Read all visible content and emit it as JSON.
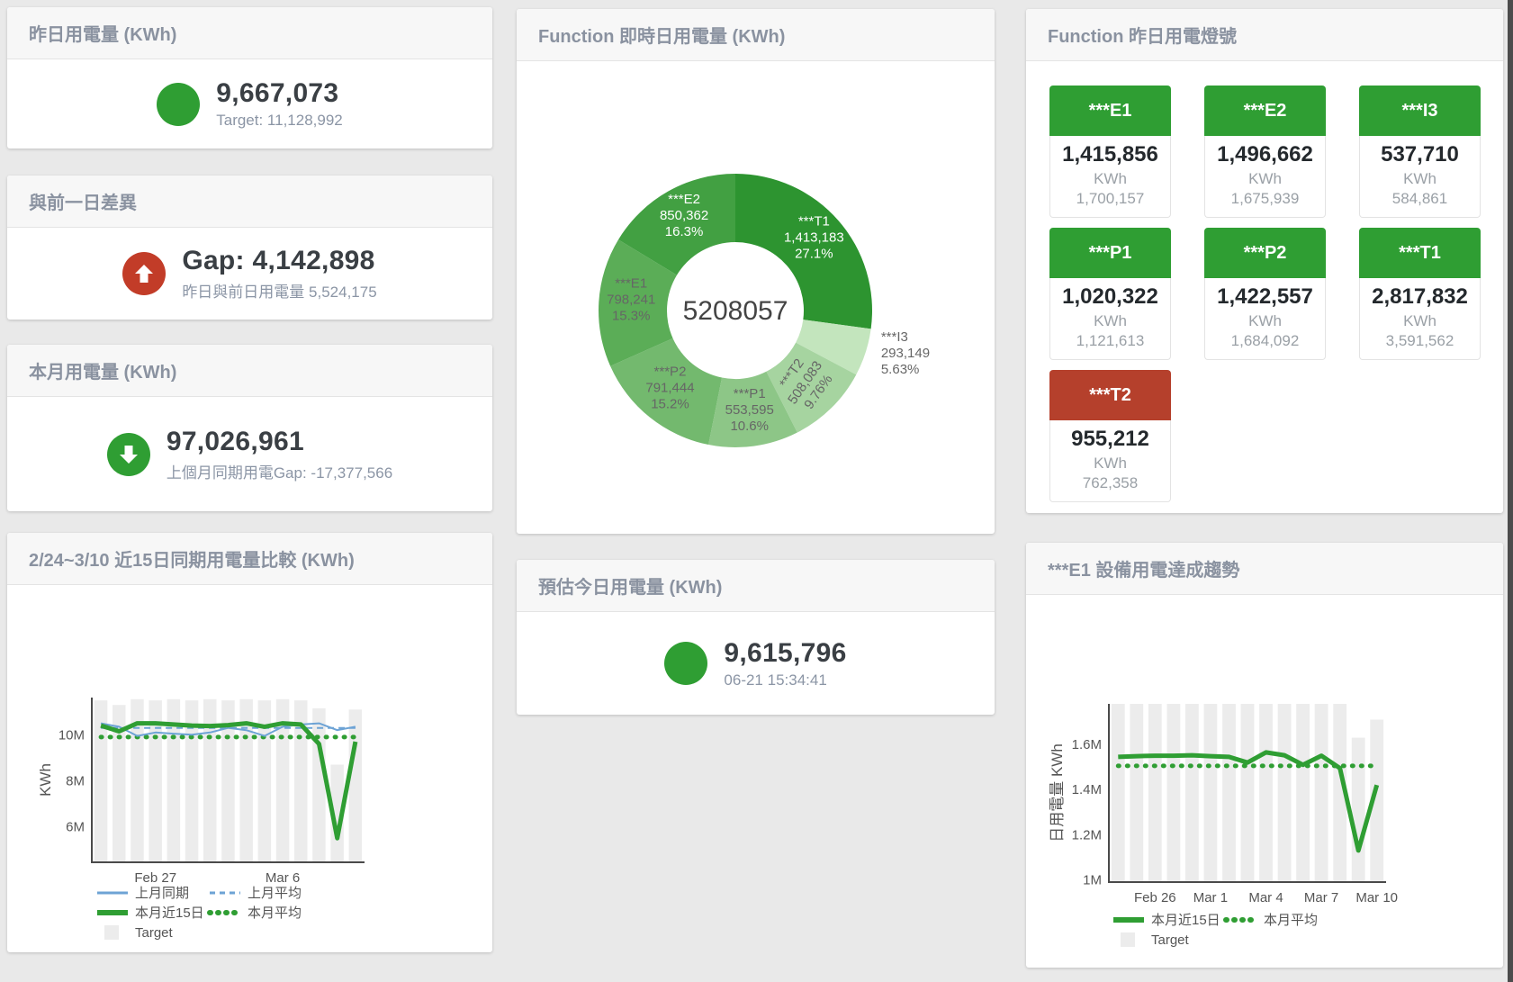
{
  "cards": {
    "yesterday": {
      "title": "昨日用電量 (KWh)",
      "value": "9,667,073",
      "subtitle": "Target: 11,128,992",
      "status_color": "#2f9e33",
      "arrow": "none"
    },
    "gap": {
      "title": "與前一日差異",
      "value": "Gap: 4,142,898",
      "subtitle": "昨日與前日用電量 5,524,175",
      "status_color": "#c23c28",
      "arrow": "up"
    },
    "month": {
      "title": "本月用電量 (KWh)",
      "value": "97,026,961",
      "subtitle": "上個月同期用電Gap: -17,377,566",
      "status_color": "#2f9e33",
      "arrow": "down"
    },
    "estimate": {
      "title": "預估今日用電量 (KWh)",
      "value": "9,615,796",
      "subtitle": "06-21 15:34:41",
      "status_color": "#2f9e33",
      "arrow": "none"
    }
  },
  "lights": {
    "title": "Function 昨日用電燈號",
    "tiles": [
      {
        "name": "***E1",
        "value": "1,415,856",
        "unit": "KWh",
        "target": "1,700,157",
        "color": "#2f9e33"
      },
      {
        "name": "***E2",
        "value": "1,496,662",
        "unit": "KWh",
        "target": "1,675,939",
        "color": "#2f9e33"
      },
      {
        "name": "***I3",
        "value": "537,710",
        "unit": "KWh",
        "target": "584,861",
        "color": "#2f9e33"
      },
      {
        "name": "***P1",
        "value": "1,020,322",
        "unit": "KWh",
        "target": "1,121,613",
        "color": "#2f9e33"
      },
      {
        "name": "***P2",
        "value": "1,422,557",
        "unit": "KWh",
        "target": "1,684,092",
        "color": "#2f9e33"
      },
      {
        "name": "***T1",
        "value": "2,817,832",
        "unit": "KWh",
        "target": "3,591,562",
        "color": "#2f9e33"
      },
      {
        "name": "***T2",
        "value": "955,212",
        "unit": "KWh",
        "target": "762,358",
        "color": "#b5402c"
      }
    ]
  },
  "chart_data": [
    {
      "type": "pie",
      "title": "Function 即時日用電量 (KWh)",
      "center_label": "5208057",
      "slices": [
        {
          "label": "***T1",
          "value": 1413183,
          "pct_label": "27.1%",
          "color": "#2d9430",
          "text": "#ffffff"
        },
        {
          "label": "***I3",
          "value": 293149,
          "pct_label": "5.63%",
          "color": "#c3e5bd",
          "text": "#666666",
          "outside": true
        },
        {
          "label": "***T2",
          "value": 508083,
          "pct_label": "9.76%",
          "color": "#a6d4a0",
          "text": "#666666",
          "rotate": -55
        },
        {
          "label": "***P1",
          "value": 553595,
          "pct_label": "10.6%",
          "color": "#8dc687",
          "text": "#666666"
        },
        {
          "label": "***P2",
          "value": 791444,
          "pct_label": "15.2%",
          "color": "#73b96e",
          "text": "#666666"
        },
        {
          "label": "***E1",
          "value": 798241,
          "pct_label": "15.3%",
          "color": "#5bad57",
          "text": "#666666"
        },
        {
          "label": "***E2",
          "value": 850362,
          "pct_label": "16.3%",
          "color": "#42a042",
          "text": "#ffffff"
        }
      ]
    },
    {
      "type": "line",
      "title": "2/24~3/10 近15日同期用電量比較 (KWh)",
      "ylabel": "KWh",
      "unit": "M KWh",
      "ylim": [
        4.45,
        11.62
      ],
      "categories": [
        "2/24",
        "2/25",
        "2/26",
        "2/27",
        "2/28",
        "3/1",
        "3/2",
        "3/3",
        "3/4",
        "3/5",
        "3/6",
        "3/7",
        "3/8",
        "3/9",
        "3/10"
      ],
      "x_ticks": [
        {
          "index": 3,
          "label": "Feb 27"
        },
        {
          "index": 10,
          "label": "Mar 6"
        }
      ],
      "y_ticks": [
        {
          "value": 6,
          "label": "6M"
        },
        {
          "value": 8,
          "label": "8M"
        },
        {
          "value": 10,
          "label": "10M"
        }
      ],
      "series": [
        {
          "name": "Target",
          "type": "bar",
          "color": "#ececec",
          "values": [
            11.5,
            11.3,
            11.55,
            11.5,
            11.55,
            11.5,
            11.55,
            11.5,
            11.55,
            11.5,
            11.55,
            11.5,
            11.15,
            8.7,
            11.1
          ]
        },
        {
          "name": "上月平均",
          "type": "line",
          "dash": "dashed",
          "color": "#6da3d5",
          "width": 2,
          "values": [
            10.3,
            10.3,
            10.3,
            10.3,
            10.3,
            10.3,
            10.3,
            10.3,
            10.3,
            10.3,
            10.3,
            10.3,
            10.3,
            10.3,
            10.3
          ]
        },
        {
          "name": "本月平均",
          "type": "line",
          "dash": "dotted",
          "color": "#2f9e33",
          "width": 5,
          "values": [
            9.9,
            9.9,
            9.9,
            9.9,
            9.9,
            9.9,
            9.9,
            9.9,
            9.9,
            9.9,
            9.9,
            9.9,
            9.9,
            9.9,
            9.9
          ]
        },
        {
          "name": "上月同期",
          "type": "line",
          "color": "#6da3d5",
          "width": 2,
          "values": [
            10.5,
            10.35,
            9.95,
            10.1,
            10.05,
            10.0,
            10.1,
            10.3,
            10.2,
            9.95,
            10.35,
            10.45,
            10.5,
            10.2,
            10.35
          ]
        },
        {
          "name": "本月近15日",
          "type": "line",
          "color": "#2f9e33",
          "width": 5,
          "values": [
            10.4,
            10.15,
            10.5,
            10.5,
            10.45,
            10.4,
            10.38,
            10.42,
            10.5,
            10.35,
            10.5,
            10.45,
            9.6,
            5.5,
            9.7
          ]
        }
      ],
      "legend_rows": [
        [
          "上月同期",
          "上月平均"
        ],
        [
          "本月近15日",
          "本月平均"
        ],
        [
          "Target"
        ]
      ]
    },
    {
      "type": "line",
      "title": "***E1 設備用電達成趨勢",
      "ylabel": "日用電量 KWh",
      "unit": "M KWh",
      "ylim": [
        0.99,
        1.78
      ],
      "categories": [
        "2/24",
        "2/25",
        "2/26",
        "2/27",
        "2/28",
        "3/1",
        "3/2",
        "3/3",
        "3/4",
        "3/5",
        "3/6",
        "3/7",
        "3/8",
        "3/9",
        "3/10"
      ],
      "x_ticks": [
        {
          "index": 2,
          "label": "Feb 26"
        },
        {
          "index": 5,
          "label": "Mar 1"
        },
        {
          "index": 8,
          "label": "Mar 4"
        },
        {
          "index": 11,
          "label": "Mar 7"
        },
        {
          "index": 14,
          "label": "Mar 10"
        }
      ],
      "y_ticks": [
        {
          "value": 1.0,
          "label": "1M"
        },
        {
          "value": 1.2,
          "label": "1.2M"
        },
        {
          "value": 1.4,
          "label": "1.4M"
        },
        {
          "value": 1.6,
          "label": "1.6M"
        }
      ],
      "series": [
        {
          "name": "Target",
          "type": "bar",
          "color": "#ececec",
          "values": [
            1.78,
            1.78,
            1.78,
            1.78,
            1.78,
            1.78,
            1.78,
            1.78,
            1.78,
            1.78,
            1.78,
            1.78,
            1.78,
            1.63,
            1.71
          ]
        },
        {
          "name": "本月平均",
          "type": "line",
          "dash": "dotted",
          "color": "#2f9e33",
          "width": 5,
          "values": [
            1.505,
            1.505,
            1.505,
            1.505,
            1.505,
            1.505,
            1.505,
            1.505,
            1.505,
            1.505,
            1.505,
            1.505,
            1.505,
            1.505,
            1.505
          ]
        },
        {
          "name": "本月近15日",
          "type": "line",
          "color": "#2f9e33",
          "width": 5,
          "values": [
            1.545,
            1.548,
            1.55,
            1.55,
            1.552,
            1.548,
            1.545,
            1.52,
            1.565,
            1.552,
            1.51,
            1.55,
            1.495,
            1.13,
            1.42
          ]
        }
      ],
      "legend_rows": [
        [
          "本月近15日",
          "本月平均"
        ],
        [
          "Target"
        ]
      ]
    }
  ]
}
